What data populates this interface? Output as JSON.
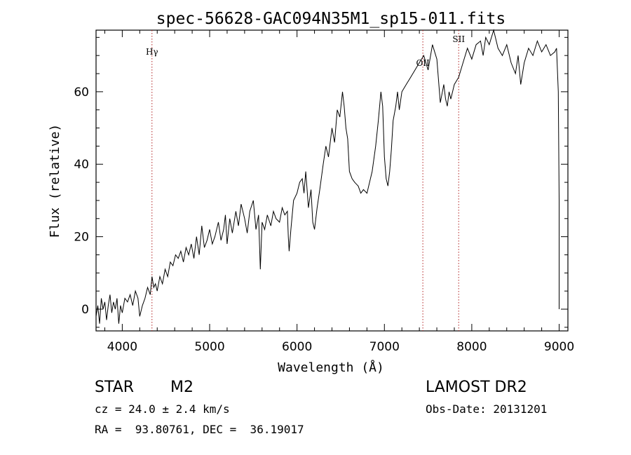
{
  "chart_data": {
    "type": "line",
    "title": "spec-56628-GAC094N35M1_sp15-011.fits",
    "xlabel": "Wavelength (Å)",
    "ylabel": "Flux (relative)",
    "xlim": [
      3700,
      9100
    ],
    "ylim": [
      -6,
      77
    ],
    "xticks": [
      4000,
      5000,
      6000,
      7000,
      8000,
      9000
    ],
    "yticks": [
      0,
      20,
      40,
      60
    ],
    "series": [
      {
        "name": "flux",
        "x": [
          3700,
          3720,
          3740,
          3760,
          3780,
          3800,
          3820,
          3840,
          3860,
          3880,
          3900,
          3920,
          3940,
          3960,
          3980,
          4000,
          4030,
          4060,
          4090,
          4120,
          4150,
          4180,
          4200,
          4230,
          4260,
          4290,
          4320,
          4340,
          4360,
          4380,
          4400,
          4430,
          4460,
          4490,
          4520,
          4550,
          4580,
          4610,
          4640,
          4670,
          4700,
          4730,
          4760,
          4790,
          4820,
          4850,
          4880,
          4910,
          4940,
          4970,
          5000,
          5030,
          5060,
          5100,
          5130,
          5160,
          5180,
          5200,
          5230,
          5260,
          5300,
          5330,
          5360,
          5400,
          5430,
          5460,
          5500,
          5530,
          5560,
          5580,
          5600,
          5630,
          5660,
          5700,
          5730,
          5760,
          5800,
          5830,
          5860,
          5890,
          5900,
          5910,
          5930,
          5960,
          6000,
          6030,
          6060,
          6080,
          6100,
          6130,
          6160,
          6180,
          6200,
          6230,
          6260,
          6300,
          6330,
          6360,
          6400,
          6430,
          6460,
          6490,
          6520,
          6540,
          6560,
          6580,
          6600,
          6630,
          6660,
          6700,
          6730,
          6760,
          6800,
          6830,
          6860,
          6900,
          6930,
          6960,
          6980,
          7000,
          7020,
          7040,
          7060,
          7080,
          7100,
          7130,
          7150,
          7170,
          7200,
          7250,
          7300,
          7350,
          7400,
          7450,
          7500,
          7550,
          7600,
          7640,
          7680,
          7700,
          7720,
          7740,
          7760,
          7800,
          7850,
          7900,
          7950,
          8000,
          8050,
          8100,
          8130,
          8160,
          8200,
          8250,
          8300,
          8350,
          8400,
          8450,
          8500,
          8530,
          8560,
          8600,
          8650,
          8700,
          8750,
          8800,
          8850,
          8900,
          8950,
          8970,
          8990,
          9000,
          9000
        ],
        "y": [
          -2,
          1,
          -4,
          3,
          0,
          2,
          -3,
          1,
          4,
          -1,
          2,
          0,
          3,
          -4,
          1,
          -1,
          3,
          2,
          4,
          1,
          5,
          3,
          -2,
          1,
          3,
          6,
          4,
          9,
          6,
          7,
          5,
          9,
          7,
          11,
          9,
          13,
          12,
          15,
          14,
          16,
          13,
          17,
          15,
          18,
          14,
          20,
          15,
          23,
          17,
          19,
          22,
          18,
          20,
          24,
          19,
          22,
          26,
          18,
          25,
          21,
          27,
          23,
          29,
          25,
          21,
          27,
          30,
          22,
          26,
          11,
          24,
          22,
          26,
          23,
          27,
          25,
          24,
          28,
          26,
          27,
          20,
          16,
          22,
          30,
          32,
          35,
          36,
          32,
          38,
          28,
          33,
          24,
          22,
          28,
          33,
          40,
          45,
          42,
          50,
          46,
          55,
          53,
          60,
          56,
          50,
          47,
          38,
          36,
          35,
          34,
          32,
          33,
          32,
          35,
          38,
          45,
          52,
          60,
          56,
          42,
          36,
          34,
          38,
          44,
          52,
          56,
          60,
          55,
          60,
          62,
          64,
          66,
          68,
          70,
          66,
          73,
          69,
          57,
          62,
          58,
          56,
          60,
          58,
          62,
          64,
          68,
          72,
          69,
          73,
          74,
          70,
          75,
          73,
          77,
          72,
          70,
          73,
          68,
          65,
          70,
          62,
          68,
          72,
          70,
          74,
          71,
          73,
          70,
          71,
          72,
          60,
          30,
          0
        ]
      }
    ],
    "annotations": [
      {
        "label": "Hγ",
        "x": 4340
      },
      {
        "label": "OII",
        "x": 7440
      },
      {
        "label": "SII",
        "x": 7850
      }
    ],
    "grid": false
  },
  "footer": {
    "class_label": "STAR",
    "subclass": "M2",
    "survey": "LAMOST DR2",
    "cz": "cz = 24.0 ± 2.4 km/s",
    "obs_date": "Obs-Date: 20131201",
    "coords": "RA =  93.80761, DEC =  36.19017"
  }
}
